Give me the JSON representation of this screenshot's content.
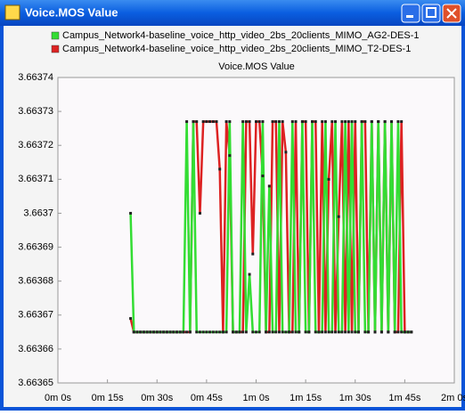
{
  "window": {
    "title": "Voice.MOS Value"
  },
  "chart_data": {
    "type": "line",
    "title": "Voice.MOS Value",
    "x": [
      22,
      23,
      24,
      25,
      26,
      27,
      28,
      29,
      30,
      31,
      32,
      33,
      34,
      35,
      36,
      37,
      38,
      39,
      40,
      41,
      42,
      43,
      44,
      45,
      46,
      47,
      48,
      49,
      50,
      51,
      52,
      53,
      54,
      55,
      56,
      57,
      58,
      59,
      60,
      61,
      62,
      63,
      64,
      65,
      66,
      67,
      68,
      69,
      70,
      71,
      72,
      73,
      74,
      75,
      76,
      77,
      78,
      79,
      80,
      81,
      82,
      83,
      84,
      85,
      86,
      87,
      88,
      89,
      90,
      91,
      92,
      93,
      94,
      95,
      96,
      97,
      98,
      99,
      100,
      101,
      102,
      103,
      104,
      105,
      106,
      107
    ],
    "series": [
      {
        "name": "Campus_Network4-baseline_voice_http_video_2bs_20clients_MIMO_AG2-DES-1",
        "color": "#33dd33",
        "values": [
          3.6637,
          3.663665,
          3.663665,
          3.663665,
          3.663665,
          3.663665,
          3.663665,
          3.663665,
          3.663665,
          3.663665,
          3.663665,
          3.663665,
          3.663665,
          3.663665,
          3.663665,
          3.663665,
          3.663665,
          3.663727,
          3.663665,
          3.663727,
          3.663665,
          3.663665,
          3.663665,
          3.663665,
          3.663665,
          3.663665,
          3.663665,
          3.663665,
          3.663665,
          3.663665,
          3.663727,
          3.663665,
          3.663665,
          3.663665,
          3.663727,
          3.663665,
          3.663682,
          3.663665,
          3.663665,
          3.663665,
          3.663727,
          3.663665,
          3.663708,
          3.663665,
          3.663665,
          3.663727,
          3.663665,
          3.663665,
          3.663665,
          3.663727,
          3.663665,
          3.663665,
          3.663727,
          3.663665,
          3.663665,
          3.663727,
          3.663665,
          3.663665,
          3.663665,
          3.663727,
          3.663665,
          3.663665,
          3.663727,
          3.663665,
          3.663665,
          3.663727,
          3.663665,
          3.663727,
          3.663665,
          3.663665,
          3.663727,
          3.663665,
          3.663665,
          3.663727,
          3.663665,
          3.663727,
          3.663665,
          3.663727,
          3.663665,
          3.663727,
          3.663665,
          3.663727,
          3.663665,
          3.663665,
          3.663665,
          3.663665
        ]
      },
      {
        "name": "Campus_Network4-baseline_voice_http_video_2bs_20clients_MIMO_T2-DES-1",
        "color": "#dd2222",
        "values": [
          3.663669,
          3.663665,
          3.663665,
          3.663665,
          3.663665,
          3.663665,
          3.663665,
          3.663665,
          3.663665,
          3.663665,
          3.663665,
          3.663665,
          3.663665,
          3.663665,
          3.663665,
          3.663665,
          3.663665,
          3.663665,
          3.663665,
          3.663727,
          3.663727,
          3.6637,
          3.663727,
          3.663727,
          3.663727,
          3.663727,
          3.663727,
          3.663713,
          3.663665,
          3.663727,
          3.663717,
          3.663665,
          3.663665,
          3.663665,
          3.663665,
          3.663727,
          3.663727,
          3.663688,
          3.663727,
          3.663727,
          3.663711,
          3.663665,
          3.663665,
          3.663727,
          3.663727,
          3.663665,
          3.663727,
          3.663718,
          3.663665,
          3.663665,
          3.663727,
          3.663665,
          3.663727,
          3.663727,
          3.663665,
          3.663727,
          3.663727,
          3.663665,
          3.663727,
          3.663665,
          3.66371,
          3.663727,
          3.663665,
          3.663699,
          3.663727,
          3.663665,
          3.663727,
          3.663665,
          3.663727,
          3.663665,
          3.663727,
          3.663727,
          3.663665,
          3.663727,
          3.663665,
          3.663727,
          3.663665,
          3.663727,
          3.663665,
          3.663727,
          3.663665,
          3.663665,
          3.663727,
          3.663665,
          3.663665,
          3.663665
        ]
      }
    ],
    "xlim": [
      0,
      120
    ],
    "xticks": [
      {
        "value": 0,
        "label": "0m 0s"
      },
      {
        "value": 15,
        "label": "0m 15s"
      },
      {
        "value": 30,
        "label": "0m 30s"
      },
      {
        "value": 45,
        "label": "0m 45s"
      },
      {
        "value": 60,
        "label": "1m 0s"
      },
      {
        "value": 75,
        "label": "1m 15s"
      },
      {
        "value": 90,
        "label": "1m 30s"
      },
      {
        "value": 105,
        "label": "1m 45s"
      },
      {
        "value": 120,
        "label": "2m 0s"
      }
    ],
    "ylim": [
      3.66365,
      3.66374
    ],
    "yticks": [
      3.66365,
      3.66366,
      3.66367,
      3.66368,
      3.66369,
      3.6637,
      3.66371,
      3.66372,
      3.66373,
      3.66374
    ],
    "grid": false
  }
}
